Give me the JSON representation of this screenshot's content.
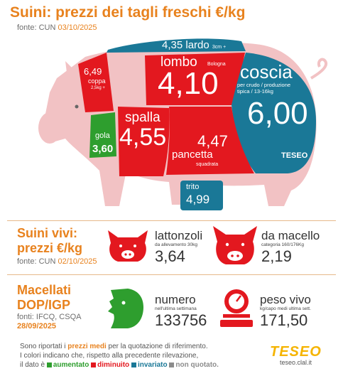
{
  "header": {
    "title": "Suini: prezzi dei tagli freschi €/kg",
    "source_label": "fonte: CUN",
    "source_date": "03/10/2025"
  },
  "cuts": {
    "lardo": {
      "value": "4,35",
      "label": "lardo",
      "note": "3cm +"
    },
    "coppa": {
      "value": "6,49",
      "label": "coppa",
      "note": "2,5kg +"
    },
    "lombo": {
      "value": "4,10",
      "label": "lombo",
      "note": "Bologna"
    },
    "coscia": {
      "value": "6,00",
      "label": "coscia",
      "note1": "per crudo / produzione",
      "note2": "tipica / 13-16kg"
    },
    "gola": {
      "value": "3,60",
      "label": "gola"
    },
    "spalla": {
      "value": "4,55",
      "label": "spalla"
    },
    "pancetta": {
      "value": "4,47",
      "label": "pancetta",
      "note": "squadrata"
    },
    "trito": {
      "value": "4,99",
      "label": "trito"
    },
    "watermark": "TESEO"
  },
  "live": {
    "title_line1": "Suini vivi:",
    "title_line2": "prezzi €/kg",
    "source_label": "fonte: CUN",
    "source_date": "02/10/2025",
    "lattonzoli": {
      "label": "lattonzoli",
      "note": "da allevamento 30kg",
      "value": "3,64"
    },
    "macello": {
      "label": "da macello",
      "note": "categoria 160/176Kg",
      "value": "2,19"
    }
  },
  "slaughter": {
    "title_line1": "Macellati",
    "title_line2": "DOP/IGP",
    "source": "fonti: IFCQ, CSQA",
    "date": "28/09/2025",
    "numero": {
      "label": "numero",
      "note": "nell'ultima settimana",
      "value": "133756"
    },
    "peso": {
      "label": "peso vivo",
      "note": "kg/capo medi ultima sett.",
      "value": "171,50"
    }
  },
  "footer": {
    "line1_a": "Sono riportati i",
    "line1_b": "prezzi medi",
    "line1_c": "per la quotazione di riferimento.",
    "line2": "I colori indicano che, rispetto alla precedente rilevazione,",
    "line3_a": "il dato è",
    "legend": [
      {
        "label": "aumentato",
        "color": "#2e9e2e"
      },
      {
        "label": "diminuito",
        "color": "#e3181f"
      },
      {
        "label": "invariato",
        "color": "#1a7897"
      },
      {
        "label": "non quotato.",
        "color": "#8c8c8c"
      }
    ]
  },
  "brand": {
    "logo": "TESEO",
    "site": "teseo.clal.it"
  },
  "colors": {
    "up": "#2e9e2e",
    "down": "#e3181f",
    "same": "#1a7897",
    "na": "#8c8c8c",
    "pig": "#f2c2c4",
    "accent": "#e8821e"
  }
}
